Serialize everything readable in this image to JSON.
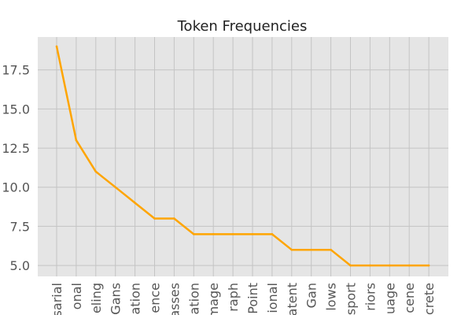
{
  "chart_data": {
    "type": "line",
    "title": "Token Frequencies",
    "xlabel": "",
    "ylabel": "",
    "categories": [
      "sarial",
      "onal",
      "eling",
      "Gans",
      "ation",
      "ence",
      "asses",
      "ation",
      "mage",
      "raph",
      "Point",
      "ional",
      "atent",
      "Gan",
      "lows",
      "sport",
      "riors",
      "uage",
      "cene",
      "crete"
    ],
    "series": [
      {
        "values": [
          19,
          13,
          11,
          10,
          9,
          8,
          8,
          7,
          7,
          7,
          7,
          7,
          6,
          6,
          6,
          5,
          5,
          5,
          5,
          5
        ]
      }
    ],
    "ylim": [
      4.3,
      19.6
    ],
    "yticks": [
      5.0,
      7.5,
      10.0,
      12.5,
      15.0,
      17.5
    ],
    "ytick_labels": [
      "5.0",
      "7.5",
      "10.0",
      "12.5",
      "15.0",
      "17.5"
    ],
    "grid": true,
    "legend": "none",
    "colors": {
      "line": "#ffa500",
      "plot_bg": "#e5e5e5",
      "grid": "#c4c4c4",
      "page_bg": "#ffffff"
    }
  }
}
